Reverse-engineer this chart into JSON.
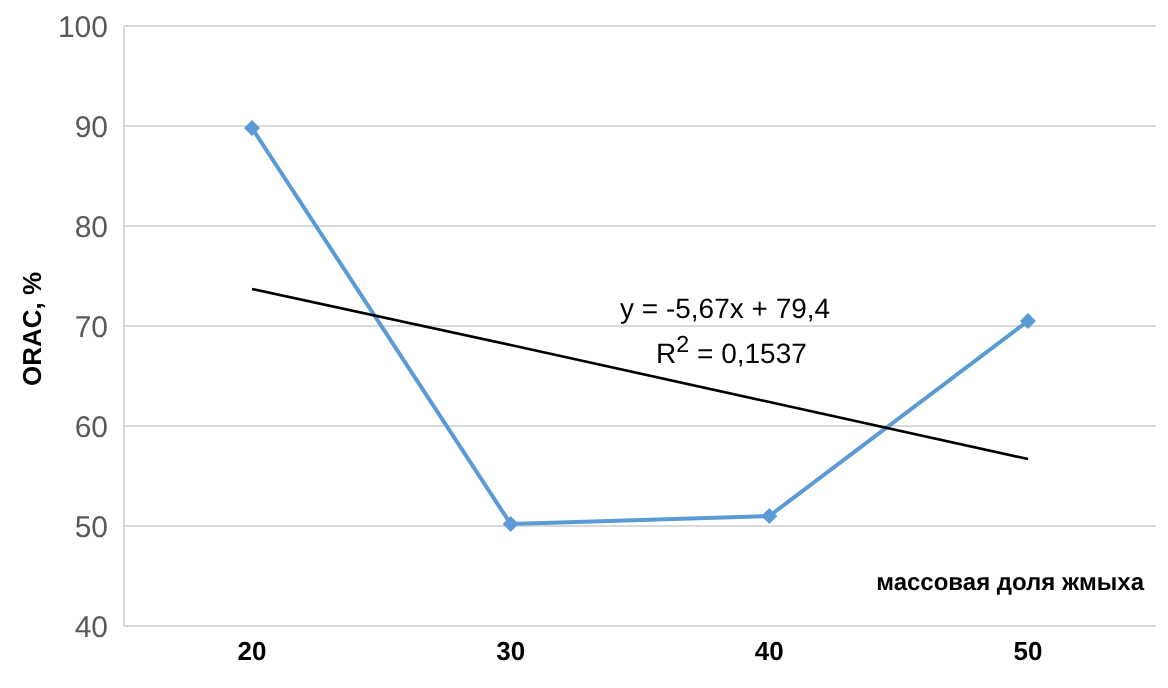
{
  "chart_data": {
    "type": "line",
    "xlabel": "массовая доля жмыха",
    "ylabel": "ORAC, %",
    "categories": [
      "20",
      "30",
      "40",
      "50"
    ],
    "series": [
      {
        "color": "#5b9bd5",
        "values": [
          89.8,
          50.2,
          51.0,
          70.5
        ],
        "marker": "diamond"
      },
      {
        "type": "line",
        "color": "#000000",
        "values": [
          73.7,
          68.1,
          62.4,
          56.7
        ],
        "marker": "none"
      }
    ],
    "ylim": [
      40,
      100
    ],
    "yticks": [
      40,
      50,
      60,
      70,
      80,
      90,
      100
    ],
    "grid": "y",
    "annotations": [
      "y = -5,67x + 79,4",
      "R$^{2}$ = 0,1537"
    ]
  }
}
